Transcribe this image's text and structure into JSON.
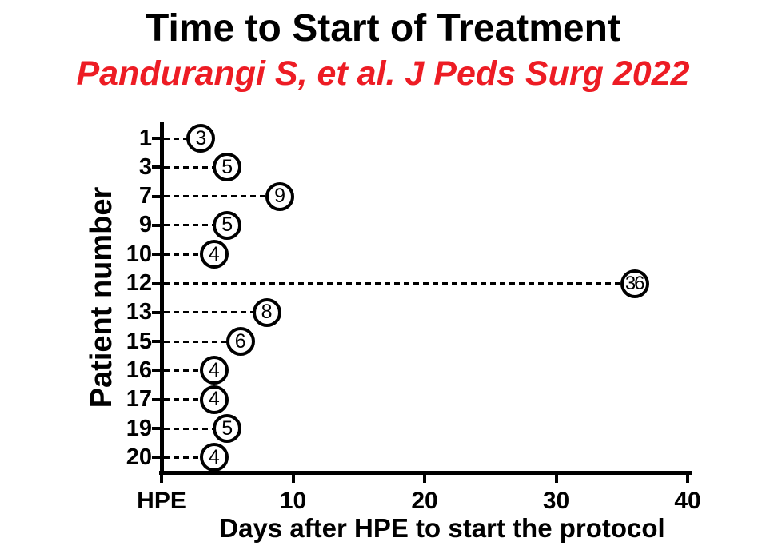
{
  "title": "Time to Start of Treatment",
  "subtitle": "Pandurangi S, et al. J Peds Surg 2022",
  "colors": {
    "title": "#000000",
    "subtitle": "#ED1C24",
    "axis": "#000000",
    "marker_fill": "#FFFFFF",
    "marker_border": "#000000",
    "background": "#FFFFFF"
  },
  "chart_data": {
    "type": "scatter",
    "style": "horizontal-lollipop-dashed-open-circles",
    "title": "Time to Start of Treatment",
    "subtitle": "Pandurangi S, et al. J Peds Surg 2022",
    "ylabel": "Patient number",
    "xlabel": "Days after HPE to start the protocol",
    "categories": [
      "1",
      "3",
      "7",
      "9",
      "10",
      "12",
      "13",
      "15",
      "16",
      "17",
      "19",
      "20"
    ],
    "values": [
      3,
      5,
      9,
      5,
      4,
      36,
      8,
      6,
      4,
      4,
      5,
      4
    ],
    "point_labels": [
      "3",
      "5",
      "9",
      "5",
      "4",
      "36",
      "8",
      "6",
      "4",
      "4",
      "5",
      "4"
    ],
    "xlim": [
      0,
      40
    ],
    "xticks": [
      {
        "value": 0,
        "label": "HPE"
      },
      {
        "value": 10,
        "label": "10"
      },
      {
        "value": 20,
        "label": "20"
      },
      {
        "value": 30,
        "label": "30"
      },
      {
        "value": 40,
        "label": "40"
      }
    ],
    "grid": false,
    "legend": false,
    "marker": "open-circle-with-value-inside",
    "connector": "dashed-line-from-axis"
  }
}
